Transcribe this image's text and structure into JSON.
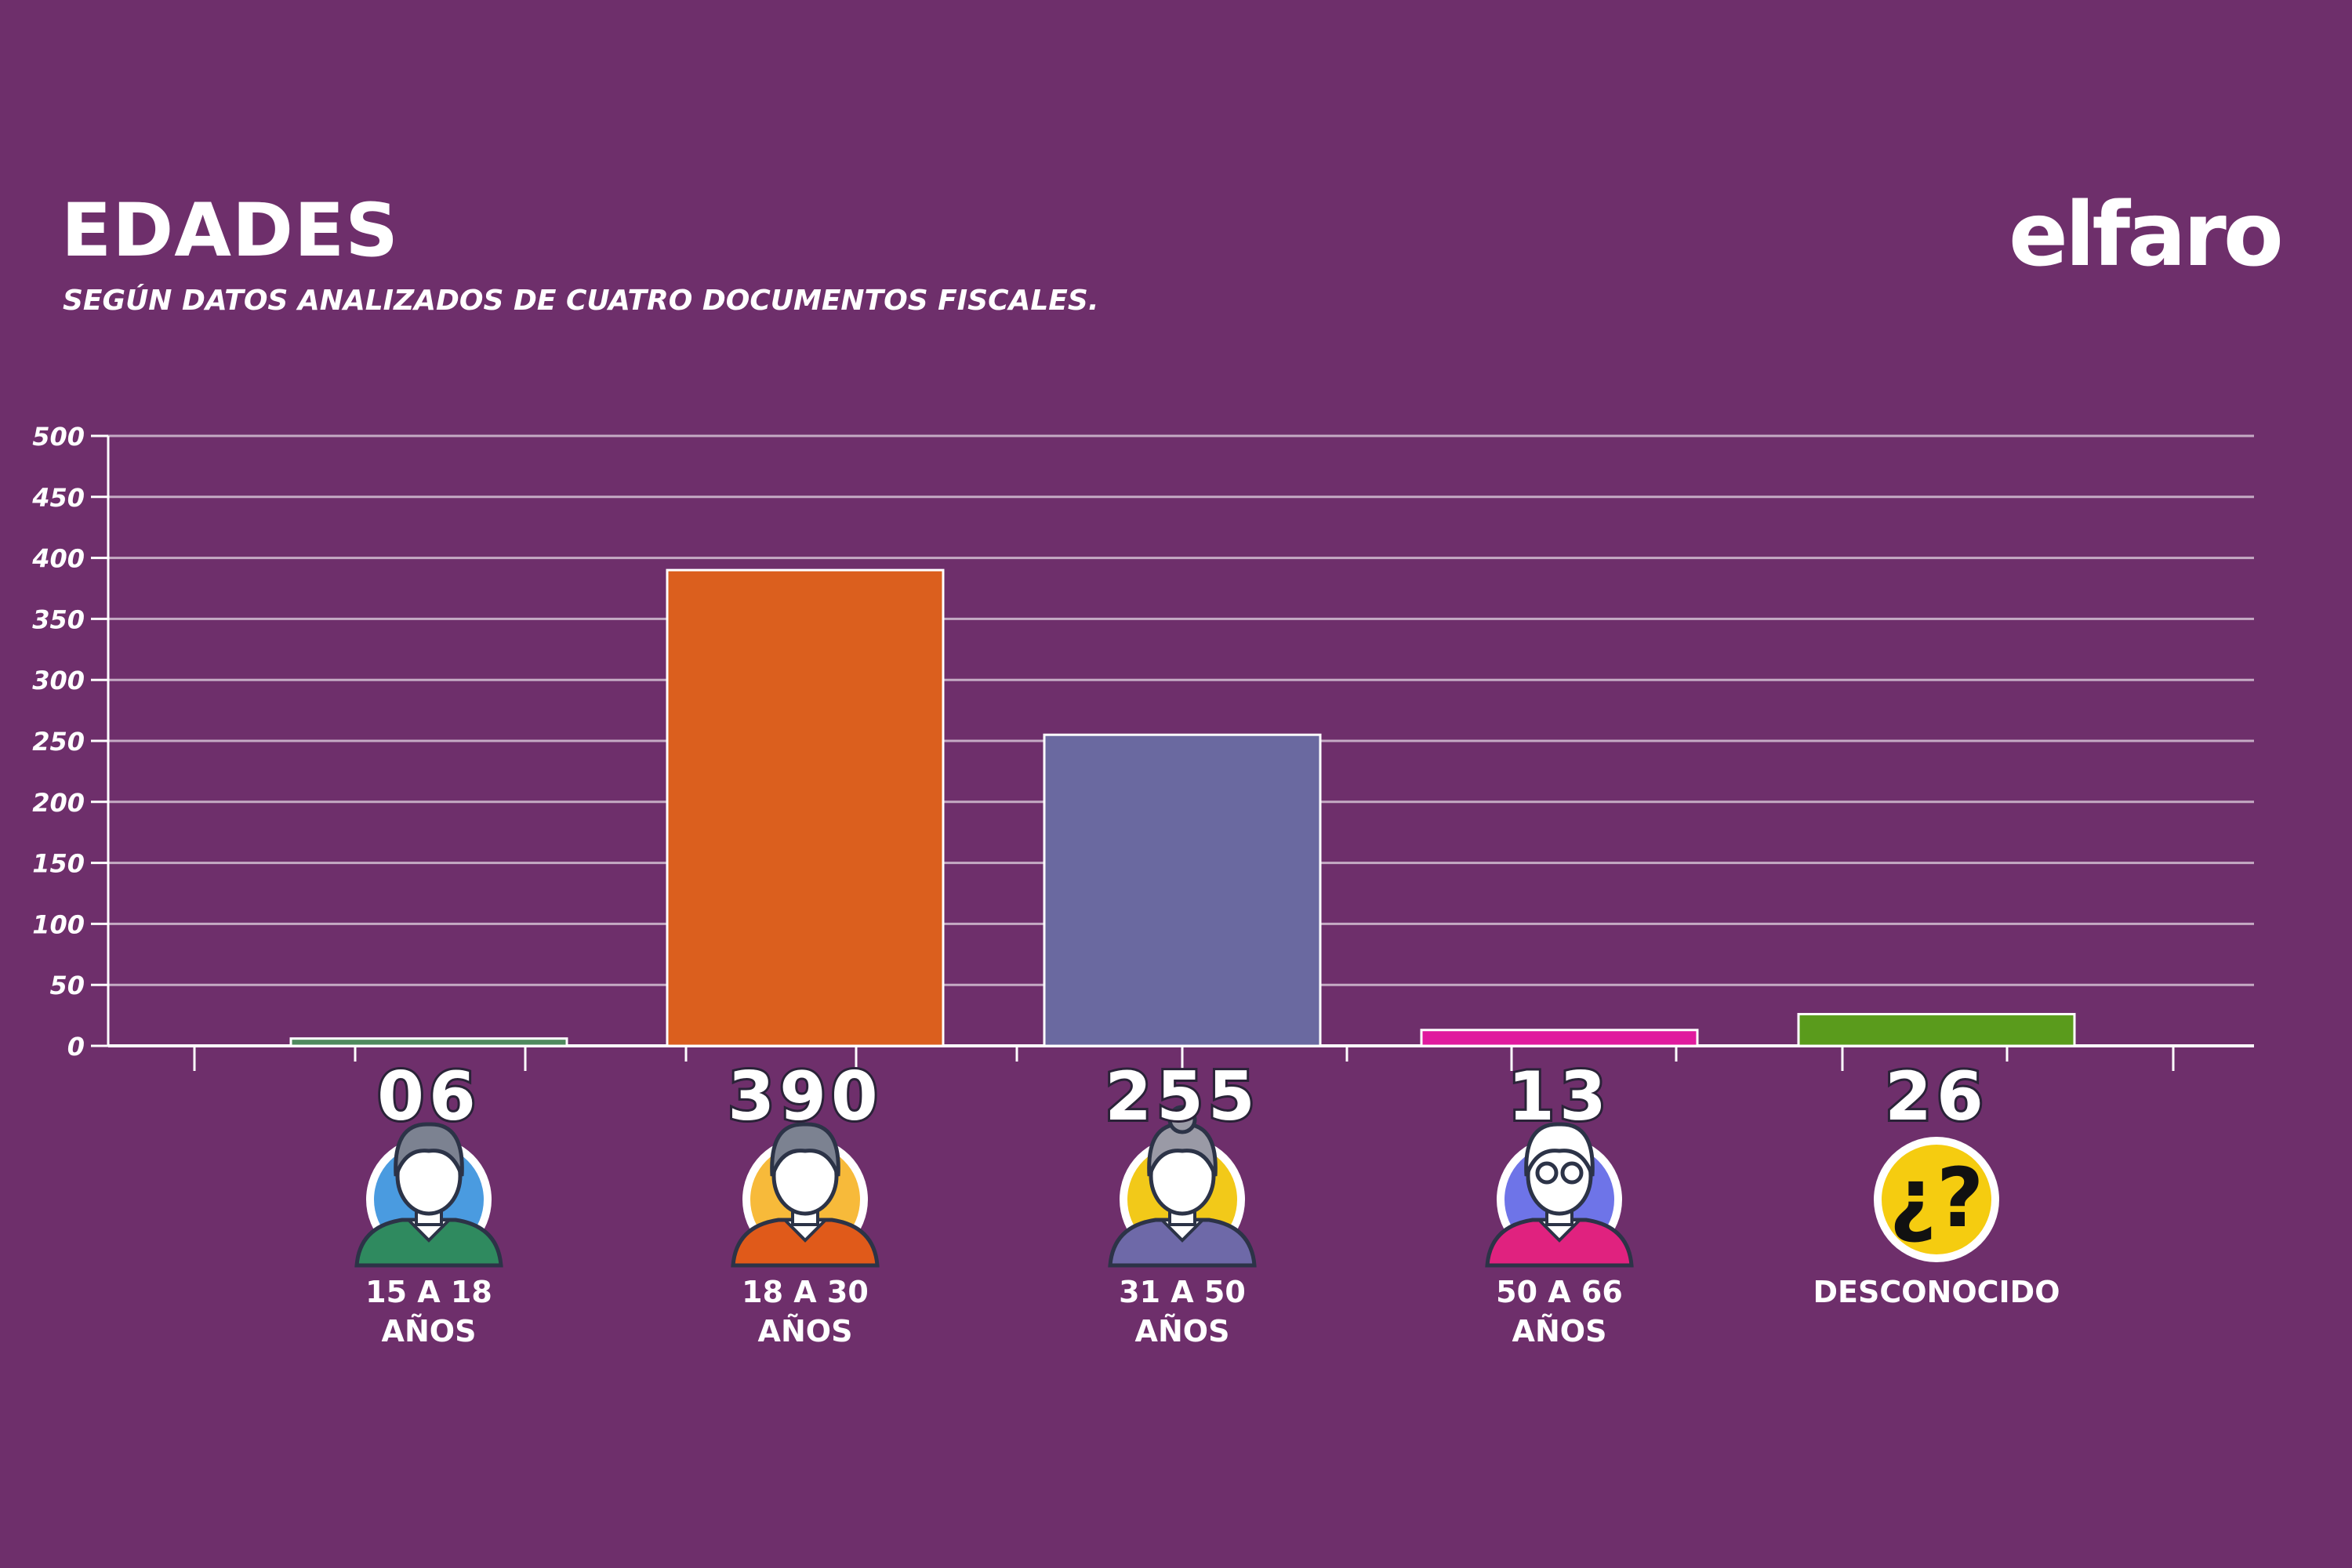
{
  "header": {
    "title": "EDADES",
    "subtitle": "SEGÚN DATOS ANALIZADOS DE CUATRO DOCUMENTOS FISCALES.",
    "logo_text": "elfaro"
  },
  "chart_data": {
    "type": "bar",
    "title": "EDADES",
    "subtitle": "SEGÚN DATOS ANALIZADOS DE CUATRO DOCUMENTOS FISCALES.",
    "xlabel": "",
    "ylabel": "",
    "ylim": [
      0,
      500
    ],
    "yticks": [
      0,
      50,
      100,
      150,
      200,
      250,
      300,
      350,
      400,
      450,
      500
    ],
    "grid": true,
    "legend": "none",
    "categories": [
      {
        "label_line1": "15 A 18",
        "label_line2": "AÑOS",
        "value": 6,
        "value_label": "06",
        "color": "#4f8a5e",
        "icon": "teen-person-icon",
        "icon_bg": "#4a9be0",
        "shirt": "#2f8a5f"
      },
      {
        "label_line1": "18 A 30",
        "label_line2": "AÑOS",
        "value": 390,
        "value_label": "390",
        "color": "#db5f1e",
        "icon": "young-adult-person-icon",
        "icon_bg": "#f7ba3a",
        "shirt": "#e05a1a"
      },
      {
        "label_line1": "31 A 50",
        "label_line2": "AÑOS",
        "value": 255,
        "value_label": "255",
        "color": "#6a69a0",
        "icon": "adult-woman-icon",
        "icon_bg": "#f2c919",
        "shirt": "#6e69a8"
      },
      {
        "label_line1": "50 A 66",
        "label_line2": "AÑOS",
        "value": 13,
        "value_label": "13",
        "color": "#e01a9e",
        "icon": "older-person-glasses-icon",
        "icon_bg": "#6e74e8",
        "shirt": "#e0227f"
      },
      {
        "label_line1": "DESCONOCIDO",
        "label_line2": "",
        "value": 26,
        "value_label": "26",
        "color": "#5a9b1c",
        "icon": "question-mark-icon",
        "icon_bg": "#f5cc10",
        "shirt": ""
      }
    ]
  }
}
